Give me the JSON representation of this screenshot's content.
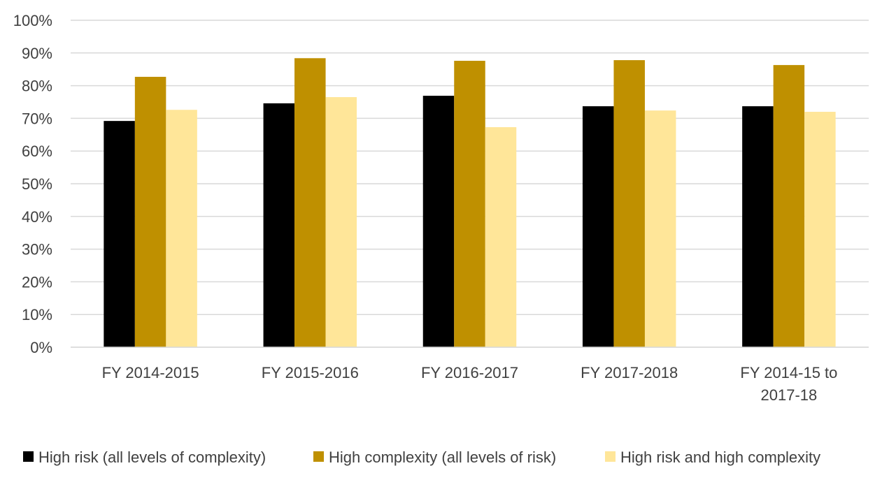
{
  "chart_data": {
    "type": "bar",
    "categories": [
      [
        "FY 2014-2015"
      ],
      [
        "FY 2015-2016"
      ],
      [
        "FY 2016-2017"
      ],
      [
        "FY 2017-2018"
      ],
      [
        "FY 2014-15 to",
        "2017-18"
      ]
    ],
    "series": [
      {
        "name": "High risk (all levels of complexity)",
        "color": "#000000",
        "values": [
          69.2,
          74.6,
          76.9,
          73.7,
          73.7
        ]
      },
      {
        "name": "High complexity (all levels of risk)",
        "color": "#BF9000",
        "values": [
          82.7,
          88.4,
          87.6,
          87.8,
          86.3
        ]
      },
      {
        "name": "High risk and high complexity",
        "color": "#FFE699",
        "values": [
          72.6,
          76.5,
          67.3,
          72.4,
          72.0
        ]
      }
    ],
    "ylim": [
      0,
      100
    ],
    "yticks": [
      "0%",
      "10%",
      "20%",
      "30%",
      "40%",
      "50%",
      "60%",
      "70%",
      "80%",
      "90%",
      "100%"
    ],
    "grid": true,
    "legend": "bottom",
    "title": "",
    "xlabel": "",
    "ylabel": ""
  }
}
